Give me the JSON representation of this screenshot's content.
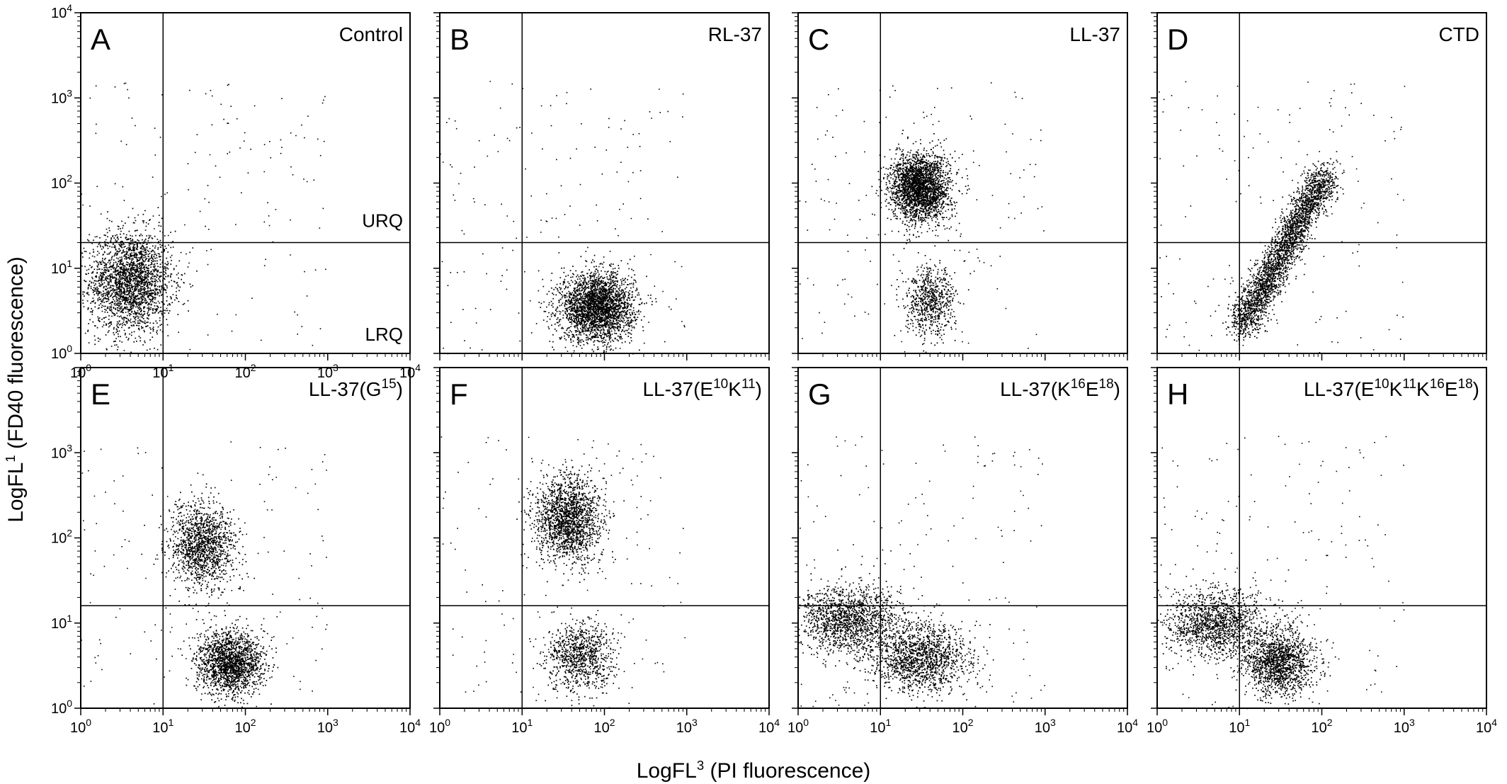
{
  "figure": {
    "ylabel": {
      "base": "LogFL",
      "sup": "1",
      "rest": " (FD40 fluorescence)"
    },
    "xlabel": {
      "base": "LogFL",
      "sup": "3",
      "rest": " (PI fluorescence)"
    }
  },
  "chart_data": [
    {
      "type": "scatter",
      "letter": "A",
      "title_parts": [
        {
          "t": "Control"
        }
      ],
      "quadrant_labels": [
        "URQ",
        "LRQ"
      ],
      "xscale": "log",
      "yscale": "log",
      "xlim": [
        1,
        10000
      ],
      "ylim": [
        1,
        10000
      ],
      "xticks": [
        "10^0",
        "10^1",
        "10^2",
        "10^3",
        "10^4"
      ],
      "yticks": [
        "10^0",
        "10^1",
        "10^2",
        "10^3",
        "10^4"
      ],
      "gate": {
        "x": 10,
        "y": 20
      },
      "clusters": [
        {
          "center": [
            4,
            7
          ],
          "spread_log10": [
            0.25,
            0.3
          ],
          "n": 2400
        }
      ]
    },
    {
      "type": "scatter",
      "letter": "B",
      "title_parts": [
        {
          "t": "RL-37"
        }
      ],
      "xscale": "log",
      "yscale": "log",
      "xlim": [
        1,
        10000
      ],
      "ylim": [
        1,
        10000
      ],
      "xticks": [],
      "yticks": [],
      "gate": {
        "x": 10,
        "y": 20
      },
      "clusters": [
        {
          "center": [
            80,
            3.5
          ],
          "spread_log10": [
            0.22,
            0.2
          ],
          "n": 2800
        }
      ]
    },
    {
      "type": "scatter",
      "letter": "C",
      "title_parts": [
        {
          "t": "LL-37"
        }
      ],
      "xscale": "log",
      "yscale": "log",
      "xlim": [
        1,
        10000
      ],
      "ylim": [
        1,
        10000
      ],
      "xticks": [],
      "yticks": [],
      "gate": {
        "x": 10,
        "y": 20
      },
      "clusters": [
        {
          "center": [
            30,
            90
          ],
          "spread_log10": [
            0.18,
            0.2
          ],
          "n": 2500
        },
        {
          "center": [
            40,
            4
          ],
          "spread_log10": [
            0.15,
            0.2
          ],
          "n": 700
        }
      ]
    },
    {
      "type": "scatter",
      "letter": "D",
      "title_parts": [
        {
          "t": "CTD"
        }
      ],
      "xscale": "log",
      "yscale": "log",
      "xlim": [
        1,
        10000
      ],
      "ylim": [
        1,
        10000
      ],
      "xticks": [],
      "yticks": [],
      "gate": {
        "x": 10,
        "y": 20
      },
      "clusters": [
        {
          "diagonal": true,
          "from": [
            10,
            2
          ],
          "to": [
            110,
            130
          ],
          "spread_log10": 0.1,
          "n": 2800
        }
      ]
    },
    {
      "type": "scatter",
      "letter": "E",
      "title_parts": [
        {
          "t": "LL-37(G"
        },
        {
          "s": "15"
        },
        {
          "t": ")"
        }
      ],
      "xscale": "log",
      "yscale": "log",
      "xlim": [
        1,
        10000
      ],
      "ylim": [
        1,
        10000
      ],
      "xticks": [
        "10^0",
        "10^1",
        "10^2",
        "10^3",
        "10^4"
      ],
      "yticks": [
        "10^0",
        "10^1",
        "10^2",
        "10^3",
        ""
      ],
      "gate": {
        "x": 10,
        "y": 16
      },
      "clusters": [
        {
          "center": [
            30,
            80
          ],
          "spread_log10": [
            0.2,
            0.25
          ],
          "n": 1400
        },
        {
          "center": [
            65,
            3.5
          ],
          "spread_log10": [
            0.2,
            0.18
          ],
          "n": 1800
        }
      ]
    },
    {
      "type": "scatter",
      "letter": "F",
      "title_parts": [
        {
          "t": "LL-37(E"
        },
        {
          "s": "10"
        },
        {
          "t": "K"
        },
        {
          "s": "11"
        },
        {
          "t": ")"
        }
      ],
      "xscale": "log",
      "yscale": "log",
      "xlim": [
        1,
        10000
      ],
      "ylim": [
        1,
        10000
      ],
      "xticks": [
        "10^0",
        "10^1",
        "10^2",
        "10^3",
        "10^4"
      ],
      "yticks": [],
      "gate": {
        "x": 10,
        "y": 16
      },
      "clusters": [
        {
          "center": [
            35,
            170
          ],
          "spread_log10": [
            0.2,
            0.25
          ],
          "n": 1800
        },
        {
          "center": [
            50,
            4
          ],
          "spread_log10": [
            0.2,
            0.2
          ],
          "n": 900
        }
      ]
    },
    {
      "type": "scatter",
      "letter": "G",
      "title_parts": [
        {
          "t": "LL-37(K"
        },
        {
          "s": "16"
        },
        {
          "t": "E"
        },
        {
          "s": "18"
        },
        {
          "t": ")"
        }
      ],
      "xscale": "log",
      "yscale": "log",
      "xlim": [
        1,
        10000
      ],
      "ylim": [
        1,
        10000
      ],
      "xticks": [
        "10^0",
        "10^1",
        "10^2",
        "10^3",
        "10^4"
      ],
      "yticks": [],
      "gate": {
        "x": 10,
        "y": 16
      },
      "clusters": [
        {
          "center": [
            4,
            11
          ],
          "spread_log10": [
            0.3,
            0.2
          ],
          "n": 1500
        },
        {
          "center": [
            30,
            4
          ],
          "spread_log10": [
            0.3,
            0.2
          ],
          "n": 1500
        }
      ]
    },
    {
      "type": "scatter",
      "letter": "H",
      "title_parts": [
        {
          "t": "LL-37(E"
        },
        {
          "s": "10"
        },
        {
          "t": "K"
        },
        {
          "s": "11"
        },
        {
          "t": "K"
        },
        {
          "s": "16"
        },
        {
          "t": "E"
        },
        {
          "s": "18"
        },
        {
          "t": ")"
        }
      ],
      "xscale": "log",
      "yscale": "log",
      "xlim": [
        1,
        10000
      ],
      "ylim": [
        1,
        10000
      ],
      "xticks": [
        "10^0",
        "10^1",
        "10^2",
        "10^3",
        "10^4"
      ],
      "yticks": [],
      "gate": {
        "x": 10,
        "y": 16
      },
      "clusters": [
        {
          "center": [
            5,
            10
          ],
          "spread_log10": [
            0.3,
            0.2
          ],
          "n": 1400
        },
        {
          "center": [
            30,
            3.5
          ],
          "spread_log10": [
            0.2,
            0.2
          ],
          "n": 1500
        }
      ]
    }
  ]
}
